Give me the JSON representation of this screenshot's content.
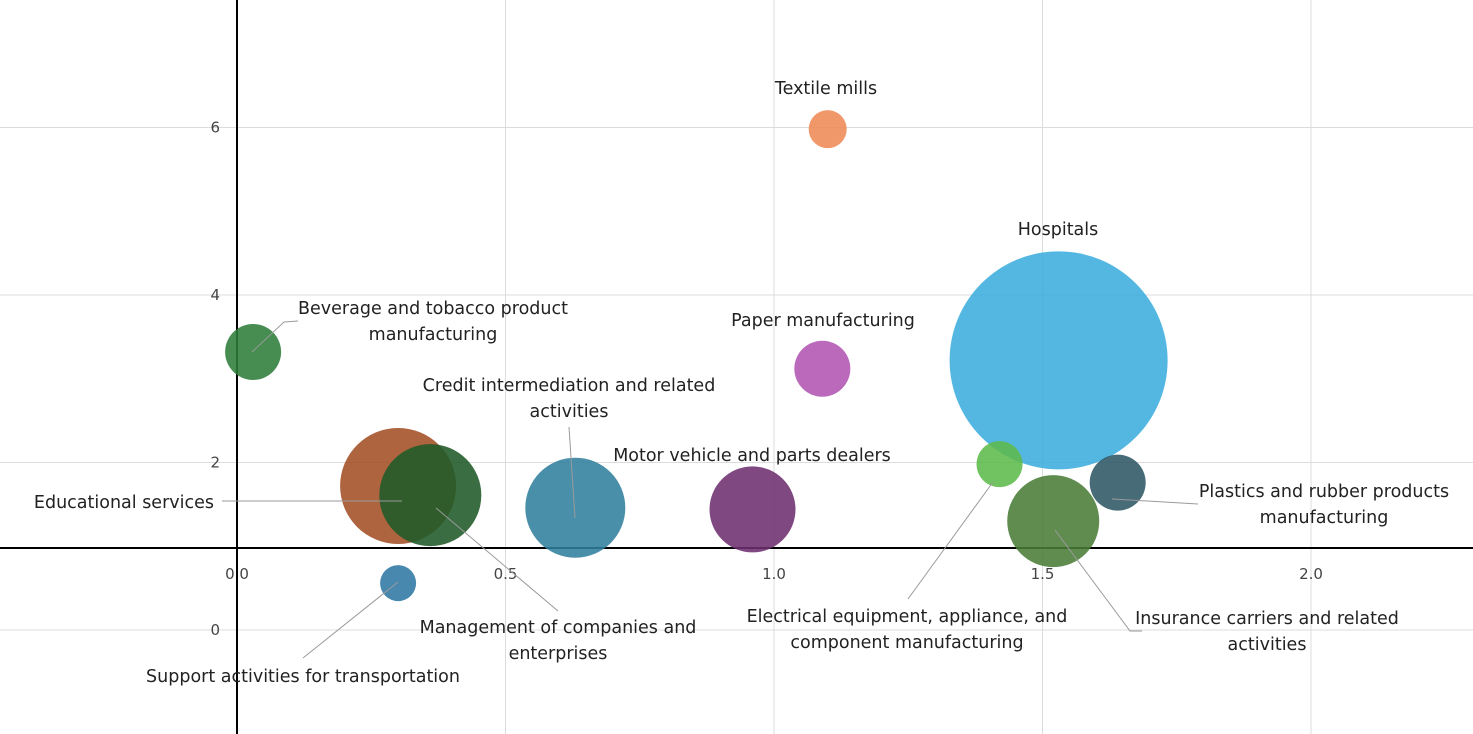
{
  "chart_data": {
    "type": "scatter",
    "title": "",
    "xlabel": "",
    "ylabel": "",
    "xlim": [
      -0.44,
      2.3
    ],
    "ylim": [
      -1.2,
      7.5
    ],
    "grid": true,
    "x_ticks": [
      0.0,
      0.5,
      1.0,
      1.5,
      2.0
    ],
    "x_tick_labels": [
      "0.0",
      "0.5",
      "1.0",
      "1.5",
      "2.0"
    ],
    "y_ticks": [
      0,
      2,
      4,
      6
    ],
    "y_tick_labels": [
      "0",
      "2",
      "4",
      "6"
    ],
    "points": [
      {
        "name": "Textile mills",
        "x": 1.1,
        "y": 5.98,
        "size": 19,
        "color": "#ef8a55"
      },
      {
        "name": "Hospitals",
        "x": 1.53,
        "y": 3.22,
        "size": 109,
        "color": "#3badde"
      },
      {
        "name": "Beverage and tobacco product manufacturing",
        "x": 0.03,
        "y": 3.32,
        "size": 28,
        "color": "#2e7d3a"
      },
      {
        "name": "Paper manufacturing",
        "x": 1.09,
        "y": 3.12,
        "size": 28,
        "color": "#b154b2"
      },
      {
        "name": "Credit intermediation and related activities",
        "x": 0.63,
        "y": 1.46,
        "size": 50,
        "color": "#317f9e"
      },
      {
        "name": "Motor vehicle and parts dealers",
        "x": 0.96,
        "y": 1.44,
        "size": 43,
        "color": "#6e2f6f"
      },
      {
        "name": "Educational services",
        "x": 0.3,
        "y": 1.72,
        "size": 58,
        "color": "#a24f24"
      },
      {
        "name": "Management of companies and enterprises",
        "x": 0.36,
        "y": 1.61,
        "size": 51,
        "color": "#1f5a28"
      },
      {
        "name": "Electrical equipment, appliance, and component manufacturing",
        "x": 1.42,
        "y": 1.98,
        "size": 23,
        "color": "#5db94a"
      },
      {
        "name": "Plastics and rubber products manufacturing",
        "x": 1.64,
        "y": 1.76,
        "size": 28,
        "color": "#2f5665"
      },
      {
        "name": "Insurance carriers and related activities",
        "x": 1.52,
        "y": 1.3,
        "size": 46,
        "color": "#4a7d37"
      },
      {
        "name": "Support activities for transportation",
        "x": 0.3,
        "y": 0.56,
        "size": 18,
        "color": "#2f78a3"
      }
    ],
    "labels": [
      {
        "point": 0,
        "lines": [
          "Textile mills"
        ]
      },
      {
        "point": 1,
        "lines": [
          "Hospitals"
        ]
      },
      {
        "point": 2,
        "lines": [
          "Beverage and tobacco product",
          "manufacturing"
        ]
      },
      {
        "point": 3,
        "lines": [
          "Paper manufacturing"
        ]
      },
      {
        "point": 4,
        "lines": [
          "Credit intermediation and related",
          "activities"
        ]
      },
      {
        "point": 5,
        "lines": [
          "Motor vehicle and parts dealers"
        ]
      },
      {
        "point": 6,
        "lines": [
          "Educational services"
        ]
      },
      {
        "point": 7,
        "lines": [
          "Management of companies and",
          "enterprises"
        ]
      },
      {
        "point": 8,
        "lines": [
          "Electrical equipment, appliance, and",
          "component manufacturing"
        ]
      },
      {
        "point": 9,
        "lines": [
          "Plastics and rubber products",
          "manufacturing"
        ]
      },
      {
        "point": 10,
        "lines": [
          "Insurance carriers and related",
          "activities"
        ]
      },
      {
        "point": 11,
        "lines": [
          "Support activities for transportation"
        ]
      }
    ]
  }
}
